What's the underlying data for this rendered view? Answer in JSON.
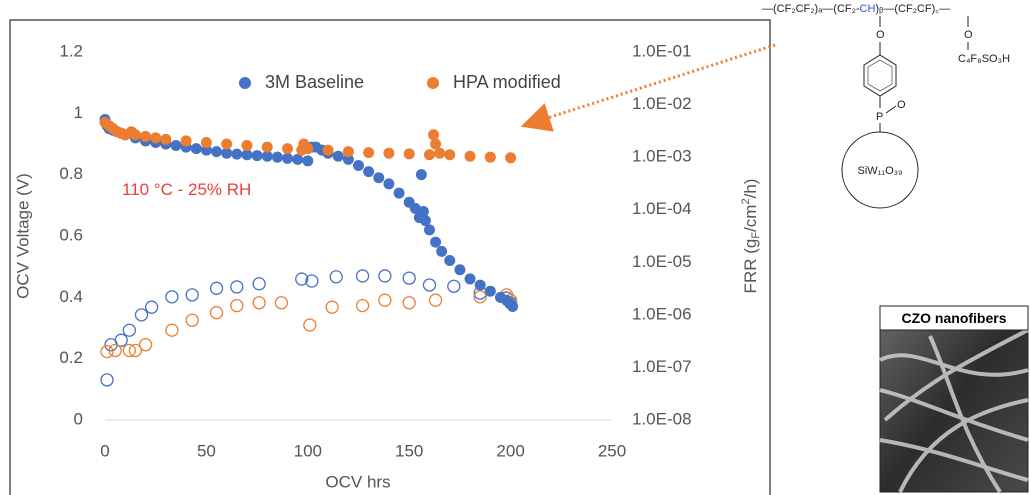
{
  "chart_data": {
    "type": "scatter",
    "xlabel": "OCV hrs",
    "ylabel": "OCV Voltage (V)",
    "y2label_parts": [
      "FRR (g",
      "F",
      "/cm",
      "2",
      "/h)"
    ],
    "annotation": "110 °C - 25% RH",
    "annotation_color": "#e8413c",
    "xlim": [
      0,
      250
    ],
    "xticks": [
      0,
      50,
      100,
      150,
      200,
      250
    ],
    "ylim": [
      0,
      1.2
    ],
    "yticks": [
      0,
      0.2,
      0.4,
      0.6,
      0.8,
      1,
      1.2
    ],
    "y2lim": [
      1e-08,
      0.1
    ],
    "y2log": true,
    "y2ticks": [
      {
        "value": 1e-08,
        "label": "1.0E-08"
      },
      {
        "value": 1e-07,
        "label": "1.0E-07"
      },
      {
        "value": 1e-06,
        "label": "1.0E-06"
      },
      {
        "value": 1e-05,
        "label": "1.0E-05"
      },
      {
        "value": 0.0001,
        "label": "1.0E-04"
      },
      {
        "value": 0.001,
        "label": "1.0E-03"
      },
      {
        "value": 0.01,
        "label": "1.0E-02"
      },
      {
        "value": 0.1,
        "label": "1.0E-01"
      }
    ],
    "grid": false,
    "series": [
      {
        "name": "3M Baseline",
        "color": "#4472c4",
        "marker": "filled",
        "axis": "y",
        "x": [
          0,
          1,
          2,
          4,
          6,
          8,
          10,
          15,
          20,
          25,
          30,
          35,
          40,
          45,
          50,
          55,
          60,
          65,
          70,
          75,
          80,
          85,
          90,
          95,
          100,
          102,
          104,
          107,
          110,
          115,
          120,
          125,
          130,
          135,
          140,
          145,
          150,
          153,
          155,
          156,
          157,
          158,
          160,
          163,
          166,
          170,
          175,
          180,
          185,
          190,
          195,
          198,
          200,
          201
        ],
        "values": [
          0.98,
          0.96,
          0.95,
          0.945,
          0.94,
          0.935,
          0.93,
          0.92,
          0.91,
          0.905,
          0.9,
          0.895,
          0.89,
          0.885,
          0.88,
          0.875,
          0.87,
          0.867,
          0.865,
          0.862,
          0.86,
          0.857,
          0.853,
          0.85,
          0.845,
          0.89,
          0.89,
          0.88,
          0.87,
          0.86,
          0.85,
          0.83,
          0.81,
          0.79,
          0.77,
          0.74,
          0.71,
          0.69,
          0.66,
          0.8,
          0.68,
          0.65,
          0.62,
          0.58,
          0.55,
          0.52,
          0.49,
          0.46,
          0.44,
          0.42,
          0.4,
          0.39,
          0.38,
          0.37
        ]
      },
      {
        "name": "HPA modified",
        "color": "#ed7d31",
        "marker": "filled",
        "axis": "y",
        "x": [
          0,
          2,
          4,
          6,
          8,
          10,
          13,
          15,
          20,
          25,
          30,
          40,
          50,
          60,
          70,
          80,
          90,
          97,
          98,
          100,
          110,
          120,
          130,
          140,
          150,
          160,
          162,
          163,
          165,
          170,
          180,
          190,
          200
        ],
        "values": [
          0.97,
          0.96,
          0.95,
          0.94,
          0.935,
          0.93,
          0.94,
          0.93,
          0.925,
          0.92,
          0.915,
          0.91,
          0.905,
          0.9,
          0.895,
          0.89,
          0.885,
          0.88,
          0.9,
          0.885,
          0.88,
          0.875,
          0.872,
          0.87,
          0.868,
          0.865,
          0.93,
          0.9,
          0.87,
          0.865,
          0.86,
          0.857,
          0.855
        ]
      },
      {
        "color": "#4472c4",
        "marker": "open",
        "axis": "y2",
        "x": [
          1,
          3,
          8,
          12,
          18,
          23,
          33,
          43,
          55,
          65,
          76,
          97,
          102,
          114,
          127,
          138,
          150,
          160,
          172,
          185,
          198,
          200
        ],
        "values": [
          5.8e-08,
          2.7e-07,
          3.3e-07,
          5.1e-07,
          1e-06,
          1.4e-06,
          2.2e-06,
          2.4e-06,
          3.2e-06,
          3.4e-06,
          3.9e-06,
          4.8e-06,
          4.4e-06,
          5.3e-06,
          5.5e-06,
          5.5e-06,
          5e-06,
          3.7e-06,
          3.5e-06,
          2.6e-06,
          2.1e-06,
          1.7e-06
        ]
      },
      {
        "color": "#ed7d31",
        "marker": "open",
        "axis": "y2",
        "x": [
          1,
          5,
          12,
          15,
          20,
          33,
          43,
          55,
          65,
          76,
          87,
          101,
          112,
          127,
          138,
          150,
          163,
          185,
          198,
          200
        ],
        "values": [
          2e-07,
          2.1e-07,
          2.1e-07,
          2.1e-07,
          2.7e-07,
          5.1e-07,
          7.9e-07,
          1.1e-06,
          1.5e-06,
          1.7e-06,
          1.7e-06,
          6.4e-07,
          1.4e-06,
          1.5e-06,
          1.9e-06,
          1.7e-06,
          1.9e-06,
          2.2e-06,
          2.4e-06,
          1.9e-06
        ]
      }
    ]
  },
  "structure": {
    "chain": [
      "—(CF₂CF₂)ₐ—(CF₂-",
      "CH",
      ")ᵦ—(CF₂CF)꜀—"
    ],
    "o1": "O",
    "o2": "O",
    "side": "C₄F₈SO₃H",
    "p": "P",
    "po": "O",
    "cluster": "SiW₁₁O₃₉"
  },
  "inset": {
    "title": "CZO nanofibers"
  }
}
